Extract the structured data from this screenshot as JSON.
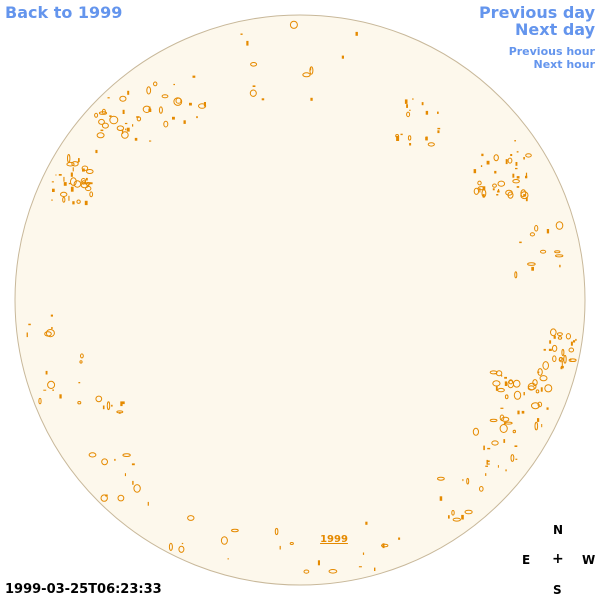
{
  "nav": {
    "back": "Back to 1999",
    "prev_day": "Previous day",
    "next_day": "Next day",
    "prev_hour": "Previous hour",
    "next_hour": "Next hour"
  },
  "disk": {
    "label": "1999",
    "fill_color": "#fdf8ec",
    "border_color": "#c8b89a",
    "contour_color": "#e58a00"
  },
  "timestamp": "1999-03-25T06:23:33",
  "compass": {
    "n": "N",
    "e": "E",
    "center": "+",
    "w": "W",
    "s": "S"
  }
}
